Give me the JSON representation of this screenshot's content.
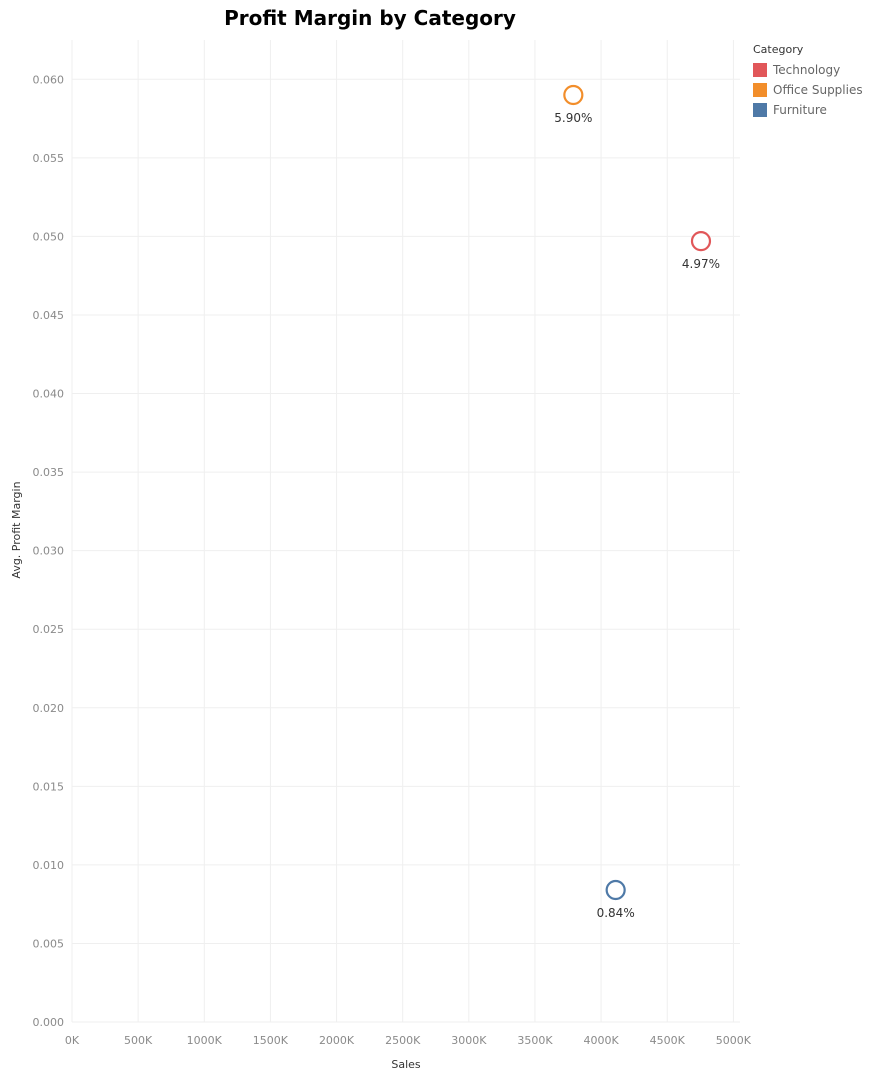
{
  "chart_data": {
    "type": "scatter",
    "title": "Profit Margin by Category",
    "xlabel": "Sales",
    "ylabel": "Avg. Profit Margin",
    "xlim": [
      0,
      5050
    ],
    "ylim": [
      0,
      0.0625
    ],
    "x_ticks": [
      0,
      500,
      1000,
      1500,
      2000,
      2500,
      3000,
      3500,
      4000,
      4500,
      5000
    ],
    "x_tick_labels": [
      "0K",
      "500K",
      "1000K",
      "1500K",
      "2000K",
      "2500K",
      "3000K",
      "3500K",
      "4000K",
      "4500K",
      "5000K"
    ],
    "y_ticks": [
      0,
      0.005,
      0.01,
      0.015,
      0.02,
      0.025,
      0.03,
      0.035,
      0.04,
      0.045,
      0.05,
      0.055,
      0.06
    ],
    "y_tick_labels": [
      "0.000",
      "0.005",
      "0.010",
      "0.015",
      "0.020",
      "0.025",
      "0.030",
      "0.035",
      "0.040",
      "0.045",
      "0.050",
      "0.055",
      "0.060"
    ],
    "grid": true,
    "legend_title": "Category",
    "legend_position": "top-right",
    "series": [
      {
        "name": "Technology",
        "color": "#e15759",
        "x": 4755,
        "y": 0.0497,
        "label": "4.97%"
      },
      {
        "name": "Office Supplies",
        "color": "#f28e2b",
        "x": 3790,
        "y": 0.059,
        "label": "5.90%"
      },
      {
        "name": "Furniture",
        "color": "#4e79a7",
        "x": 4110,
        "y": 0.0084,
        "label": "0.84%"
      }
    ]
  }
}
